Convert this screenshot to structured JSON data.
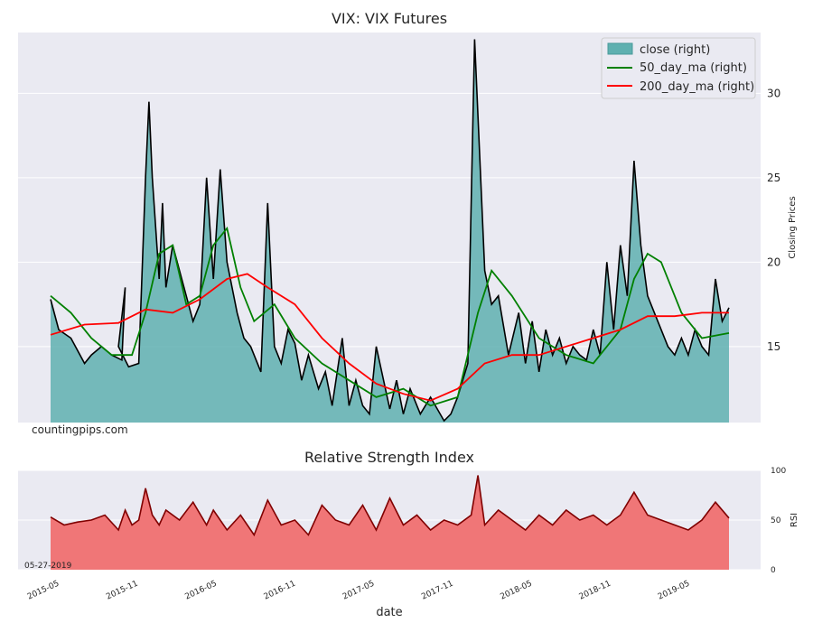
{
  "chart_data": [
    {
      "type": "area",
      "title": "VIX: VIX Futures",
      "ylabel": "Closing Prices",
      "ylim": [
        10.5,
        33.6
      ],
      "yticks": [
        15,
        20,
        25,
        30
      ],
      "watermark": "countingpips.com",
      "legend_position": "top-right",
      "x_start": "2015-05",
      "x_end": "2019-05-27",
      "series": [
        {
          "name": "close (right)",
          "style": "area",
          "color": "#000000",
          "fill": "#5fb0b0",
          "x": [
            0,
            0.012,
            0.03,
            0.05,
            0.06,
            0.075,
            0.09,
            0.105,
            0.11,
            0.1,
            0.115,
            0.13,
            0.14,
            0.145,
            0.15,
            0.16,
            0.165,
            0.17,
            0.18,
            0.2,
            0.21,
            0.22,
            0.23,
            0.24,
            0.25,
            0.26,
            0.275,
            0.285,
            0.295,
            0.31,
            0.32,
            0.33,
            0.34,
            0.35,
            0.36,
            0.37,
            0.38,
            0.395,
            0.405,
            0.415,
            0.43,
            0.44,
            0.45,
            0.46,
            0.47,
            0.48,
            0.5,
            0.51,
            0.52,
            0.53,
            0.545,
            0.56,
            0.58,
            0.59,
            0.6,
            0.615,
            0.625,
            0.64,
            0.65,
            0.66,
            0.675,
            0.69,
            0.7,
            0.71,
            0.72,
            0.73,
            0.74,
            0.75,
            0.76,
            0.77,
            0.78,
            0.79,
            0.8,
            0.81,
            0.82,
            0.83,
            0.84,
            0.85,
            0.86,
            0.87,
            0.88,
            0.89,
            0.9,
            0.91,
            0.92,
            0.93,
            0.94,
            0.95,
            0.96,
            0.97,
            0.98,
            0.99,
            1.0
          ],
          "values": [
            17.8,
            16.0,
            15.5,
            14.0,
            14.5,
            15.0,
            14.5,
            14.2,
            18.5,
            15.0,
            13.8,
            14.0,
            25.0,
            29.5,
            25.0,
            19.0,
            23.5,
            18.5,
            21.0,
            18.0,
            16.5,
            17.5,
            25.0,
            19.0,
            25.5,
            20.0,
            17.0,
            15.5,
            15.0,
            13.5,
            23.5,
            15.0,
            14.0,
            16.0,
            15.2,
            13.0,
            14.5,
            12.5,
            13.5,
            11.5,
            15.5,
            11.5,
            13.0,
            11.5,
            11.0,
            15.0,
            11.3,
            13.0,
            11.0,
            12.5,
            11.0,
            12.0,
            10.6,
            11.0,
            12.0,
            14.0,
            33.2,
            19.5,
            17.5,
            18.0,
            14.5,
            17.0,
            14.0,
            16.5,
            13.5,
            16.0,
            14.5,
            15.5,
            14.0,
            15.0,
            14.5,
            14.2,
            16.0,
            14.5,
            20.0,
            16.0,
            21.0,
            18.0,
            26.0,
            21.0,
            18.0,
            17.0,
            16.0,
            15.0,
            14.5,
            15.5,
            14.5,
            16.0,
            15.0,
            14.5,
            19.0,
            16.5,
            17.3
          ]
        },
        {
          "name": "50_day_ma (right)",
          "style": "line",
          "color": "#008000",
          "x": [
            0,
            0.03,
            0.06,
            0.09,
            0.12,
            0.14,
            0.16,
            0.18,
            0.2,
            0.22,
            0.24,
            0.26,
            0.28,
            0.3,
            0.33,
            0.36,
            0.4,
            0.44,
            0.48,
            0.52,
            0.56,
            0.6,
            0.63,
            0.65,
            0.68,
            0.72,
            0.76,
            0.8,
            0.84,
            0.86,
            0.88,
            0.9,
            0.93,
            0.96,
            1.0
          ],
          "values": [
            18.0,
            17.0,
            15.5,
            14.5,
            14.5,
            17.0,
            20.5,
            21.0,
            17.5,
            18.0,
            21.0,
            22.0,
            18.5,
            16.5,
            17.5,
            15.5,
            14.0,
            13.0,
            12.0,
            12.5,
            11.5,
            12.0,
            17.0,
            19.5,
            18.0,
            15.5,
            14.5,
            14.0,
            16.0,
            19.0,
            20.5,
            20.0,
            17.0,
            15.5,
            15.8
          ]
        },
        {
          "name": "200_day_ma (right)",
          "style": "line",
          "color": "#ff0000",
          "x": [
            0,
            0.05,
            0.1,
            0.14,
            0.18,
            0.22,
            0.26,
            0.29,
            0.32,
            0.36,
            0.4,
            0.44,
            0.48,
            0.52,
            0.56,
            0.6,
            0.64,
            0.68,
            0.72,
            0.76,
            0.8,
            0.84,
            0.88,
            0.92,
            0.96,
            1.0
          ],
          "values": [
            15.7,
            16.3,
            16.4,
            17.2,
            17.0,
            17.8,
            19.0,
            19.3,
            18.5,
            17.5,
            15.5,
            14.0,
            12.8,
            12.2,
            11.8,
            12.5,
            14.0,
            14.5,
            14.5,
            15.0,
            15.5,
            16.0,
            16.8,
            16.8,
            17.0,
            17.0
          ]
        }
      ]
    },
    {
      "type": "area",
      "title": "Relative Strength Index",
      "ylabel": "RSI",
      "xlabel": "date",
      "ylim": [
        0,
        100
      ],
      "yticks": [
        0,
        50,
        100
      ],
      "date_label": "05-27-2019",
      "xticks": [
        "2015-05",
        "2015-11",
        "2016-05",
        "2016-11",
        "2017-05",
        "2017-11",
        "2018-05",
        "2018-11",
        "2019-05"
      ],
      "series": [
        {
          "name": "RSI",
          "style": "area",
          "color": "#800000",
          "fill": "#f07070",
          "x": [
            0,
            0.02,
            0.04,
            0.06,
            0.08,
            0.1,
            0.11,
            0.12,
            0.13,
            0.14,
            0.15,
            0.16,
            0.17,
            0.19,
            0.21,
            0.23,
            0.24,
            0.26,
            0.28,
            0.3,
            0.32,
            0.34,
            0.36,
            0.38,
            0.4,
            0.42,
            0.44,
            0.46,
            0.48,
            0.5,
            0.52,
            0.54,
            0.56,
            0.58,
            0.6,
            0.62,
            0.63,
            0.64,
            0.66,
            0.68,
            0.7,
            0.72,
            0.74,
            0.76,
            0.78,
            0.8,
            0.82,
            0.84,
            0.86,
            0.88,
            0.9,
            0.92,
            0.94,
            0.96,
            0.98,
            1.0
          ],
          "values": [
            53,
            45,
            48,
            50,
            55,
            40,
            60,
            45,
            50,
            82,
            55,
            45,
            60,
            50,
            68,
            45,
            60,
            40,
            55,
            35,
            70,
            45,
            50,
            35,
            65,
            50,
            45,
            65,
            40,
            72,
            45,
            55,
            40,
            50,
            45,
            55,
            95,
            45,
            60,
            50,
            40,
            55,
            45,
            60,
            50,
            55,
            45,
            55,
            78,
            55,
            50,
            45,
            40,
            50,
            68,
            52
          ]
        }
      ]
    }
  ]
}
